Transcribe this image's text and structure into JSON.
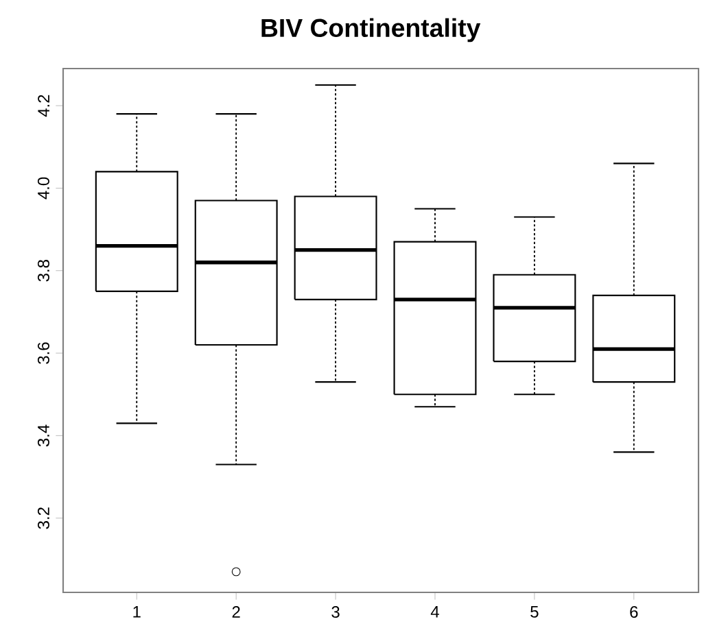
{
  "chart_data": {
    "type": "box",
    "title": "BIV Continentality",
    "categories": [
      "1",
      "2",
      "3",
      "4",
      "5",
      "6"
    ],
    "boxes": [
      {
        "low": 3.43,
        "q1": 3.75,
        "median": 3.86,
        "q3": 4.04,
        "high": 4.18
      },
      {
        "low": 3.33,
        "q1": 3.62,
        "median": 3.82,
        "q3": 3.97,
        "high": 4.18,
        "outliers": [
          3.07
        ]
      },
      {
        "low": 3.53,
        "q1": 3.73,
        "median": 3.85,
        "q3": 3.98,
        "high": 4.25
      },
      {
        "low": 3.47,
        "q1": 3.5,
        "median": 3.73,
        "q3": 3.87,
        "high": 3.95
      },
      {
        "low": 3.5,
        "q1": 3.58,
        "median": 3.71,
        "q3": 3.79,
        "high": 3.93
      },
      {
        "low": 3.36,
        "q1": 3.53,
        "median": 3.61,
        "q3": 3.74,
        "high": 4.06
      }
    ],
    "ylim": [
      3.02,
      4.29
    ],
    "yticks": [
      3.2,
      3.4,
      3.6,
      3.8,
      {
        "value": 4,
        "label": "4.0"
      },
      4.2
    ]
  }
}
